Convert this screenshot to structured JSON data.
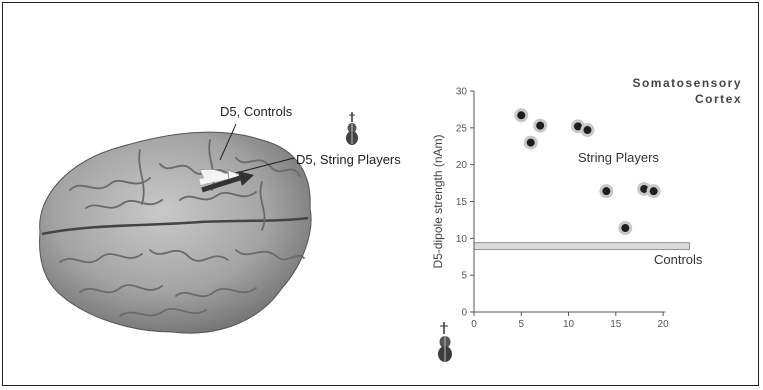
{
  "figure": {
    "left_labels": {
      "controls": "D5, Controls",
      "string_players": "D5, String Players"
    }
  },
  "chart_data": {
    "type": "scatter",
    "title": "Somatosensory Cortex",
    "title_lines": [
      "Somatosensory",
      "Cortex"
    ],
    "xlabel": "",
    "ylabel": "D5-dipole strength (nAm)",
    "xlim": [
      0,
      22
    ],
    "ylim": [
      0,
      30
    ],
    "x_ticks": [
      0,
      5,
      10,
      15,
      20
    ],
    "y_ticks": [
      0,
      5,
      10,
      15,
      20,
      25,
      30
    ],
    "grid": false,
    "series": [
      {
        "name": "String Players",
        "points": [
          {
            "x": 5,
            "y": 26.7
          },
          {
            "x": 6,
            "y": 23
          },
          {
            "x": 7,
            "y": 25.3
          },
          {
            "x": 11,
            "y": 25.2
          },
          {
            "x": 12,
            "y": 24.7
          },
          {
            "x": 14,
            "y": 16.4
          },
          {
            "x": 16,
            "y": 11.4
          },
          {
            "x": 18,
            "y": 16.7
          },
          {
            "x": 19,
            "y": 16.4
          }
        ]
      },
      {
        "name": "Controls",
        "band": {
          "ymin": 8.5,
          "ymax": 9.4
        }
      }
    ],
    "colors": {
      "point": "#1e1e1e",
      "halo": "#c8c8c8",
      "band": "#dcdcdc",
      "axis": "#555555"
    }
  }
}
